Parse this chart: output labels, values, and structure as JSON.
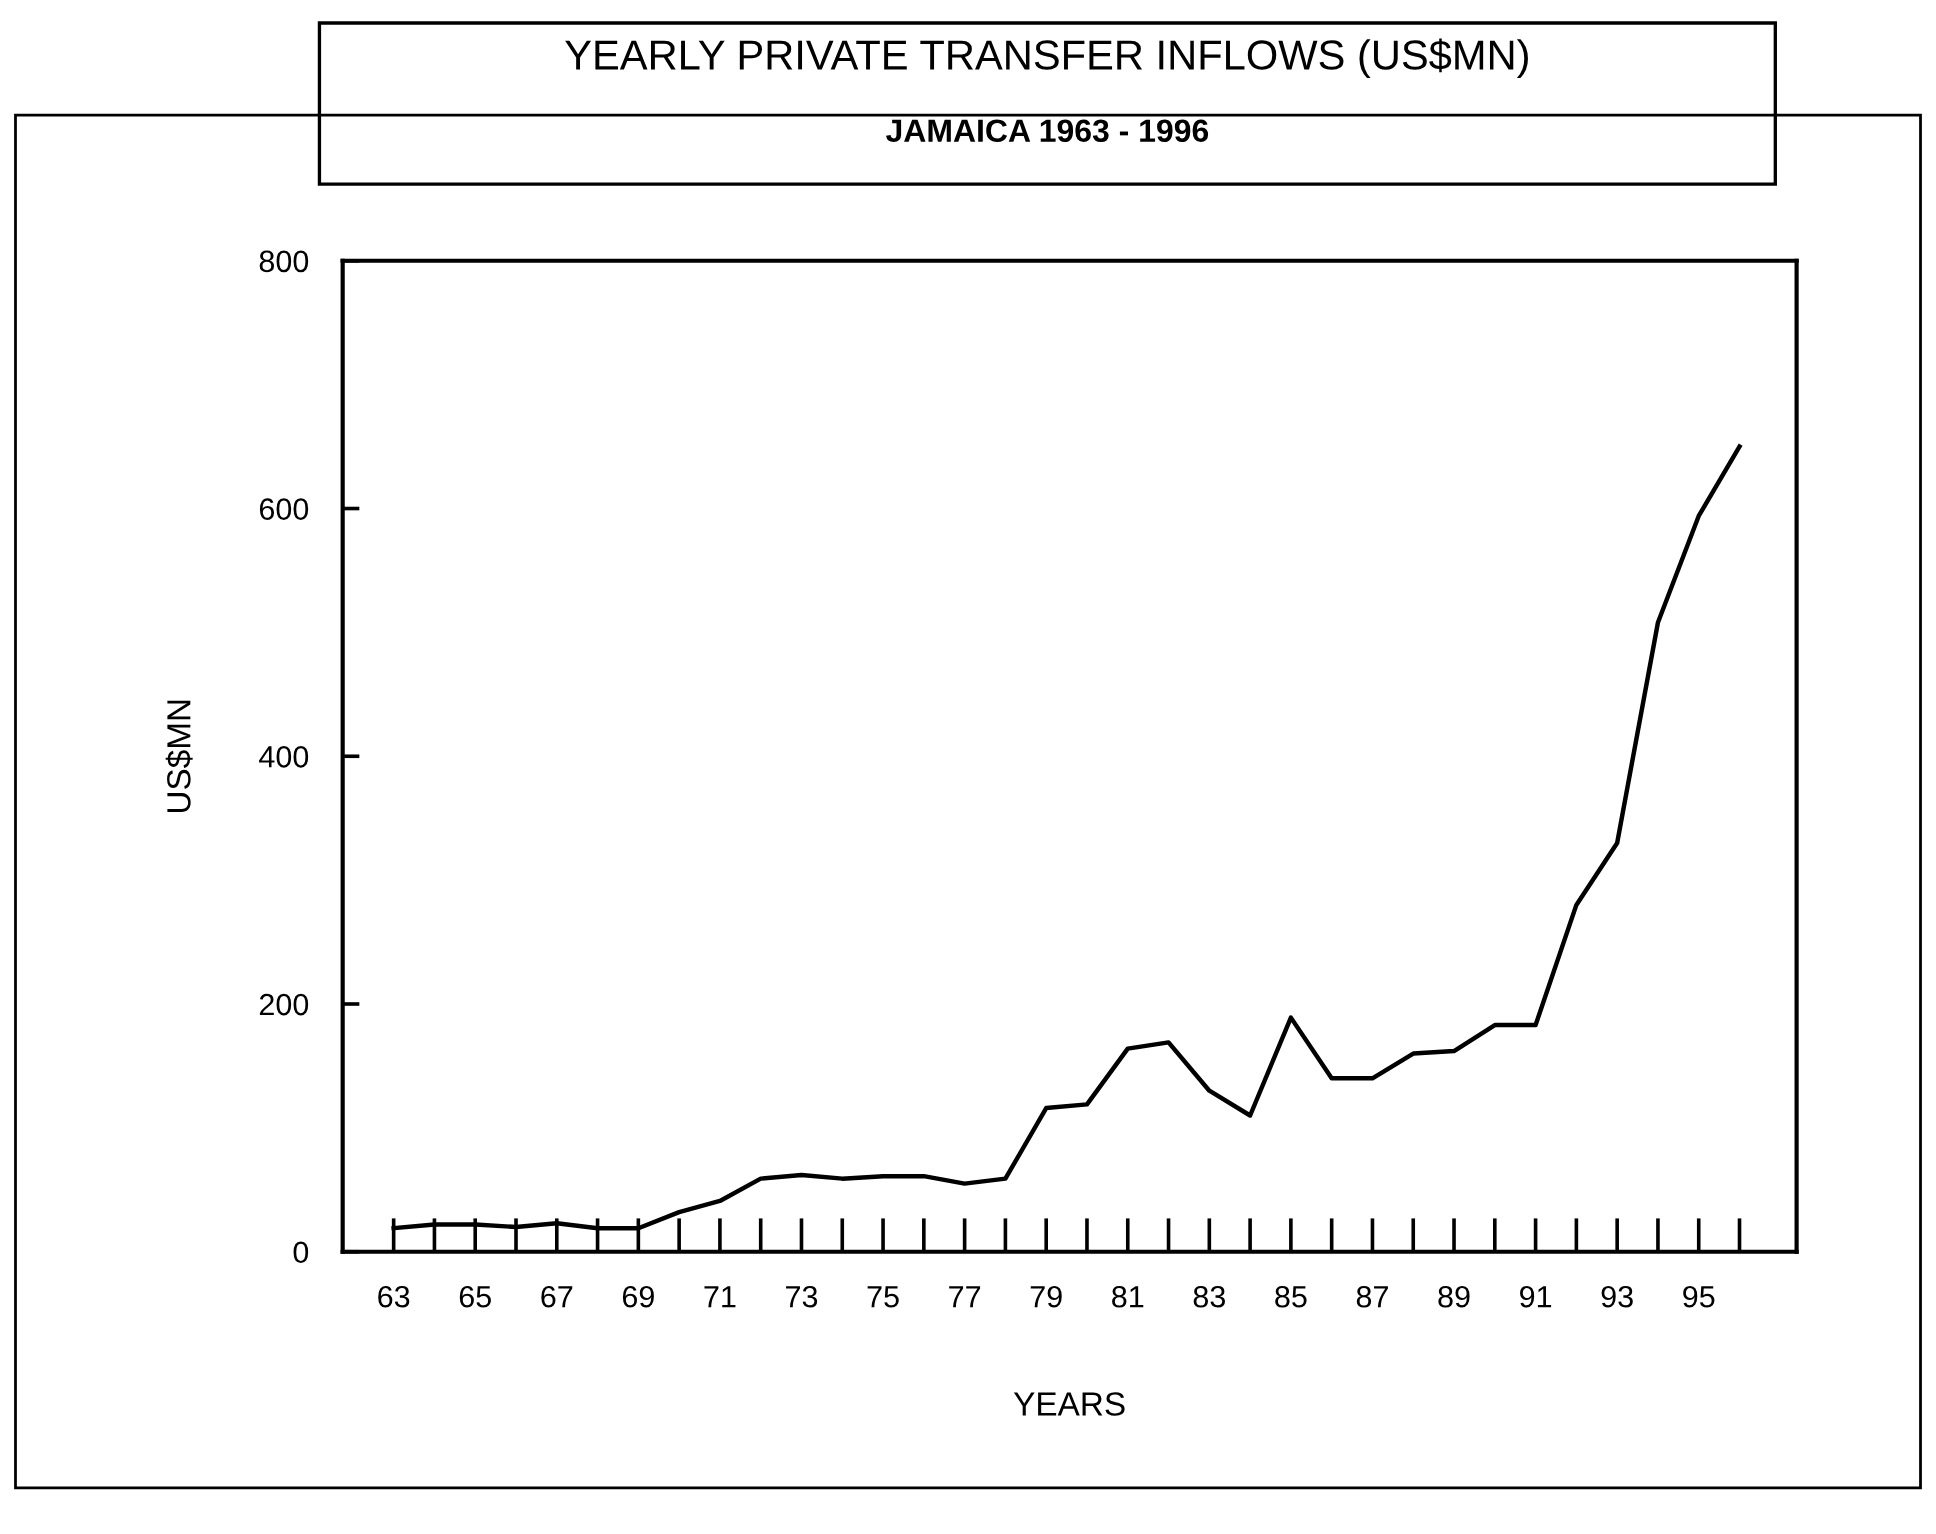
{
  "chart_data": {
    "type": "line",
    "title": "YEARLY PRIVATE TRANSFER INFLOWS (US$MN)",
    "subtitle": "JAMAICA 1963 - 1996",
    "xlabel": "YEARS",
    "ylabel": "US$MN",
    "categories": [
      "63",
      null,
      "65",
      null,
      "67",
      null,
      "69",
      null,
      "71",
      null,
      "73",
      null,
      "75",
      null,
      "77",
      null,
      "79",
      null,
      "81",
      null,
      "83",
      null,
      "85",
      null,
      "87",
      null,
      "89",
      null,
      "91",
      null,
      "93",
      null,
      "95",
      null
    ],
    "series": [
      {
        "color": "#000000",
        "values": [
          19,
          22,
          22,
          20,
          23,
          19,
          19,
          32,
          41,
          59,
          62,
          59,
          61,
          61,
          55,
          59,
          116,
          119,
          164,
          169,
          130,
          110,
          189,
          140,
          140,
          160,
          162,
          183,
          183,
          280,
          330,
          508,
          594,
          650
        ]
      }
    ],
    "ylim": [
      0,
      800
    ],
    "yticks": [
      0,
      200,
      400,
      600,
      800
    ],
    "marker": "none",
    "line_style": "solid"
  }
}
